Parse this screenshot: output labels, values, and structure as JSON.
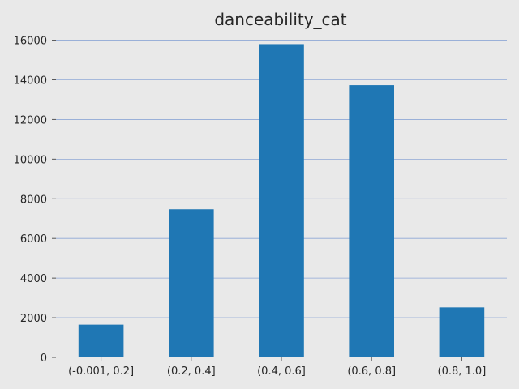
{
  "chart_data": {
    "type": "bar",
    "title": "danceability_cat",
    "categories": [
      "(-0.001, 0.2]",
      "(0.2, 0.4]",
      "(0.4, 0.6]",
      "(0.6, 0.8]",
      "(0.8, 1.0]"
    ],
    "values": [
      1650,
      7470,
      15800,
      13730,
      2520
    ],
    "xlabel": "",
    "ylabel": "",
    "ylim": [
      0,
      16000
    ],
    "yticks": [
      0,
      2000,
      4000,
      6000,
      8000,
      10000,
      12000,
      14000,
      16000
    ],
    "grid": "horizontal",
    "legend": "none",
    "bar_color": "#1f77b4",
    "grid_color": "#8fa8d6",
    "background_color": "#e9e9e9"
  }
}
